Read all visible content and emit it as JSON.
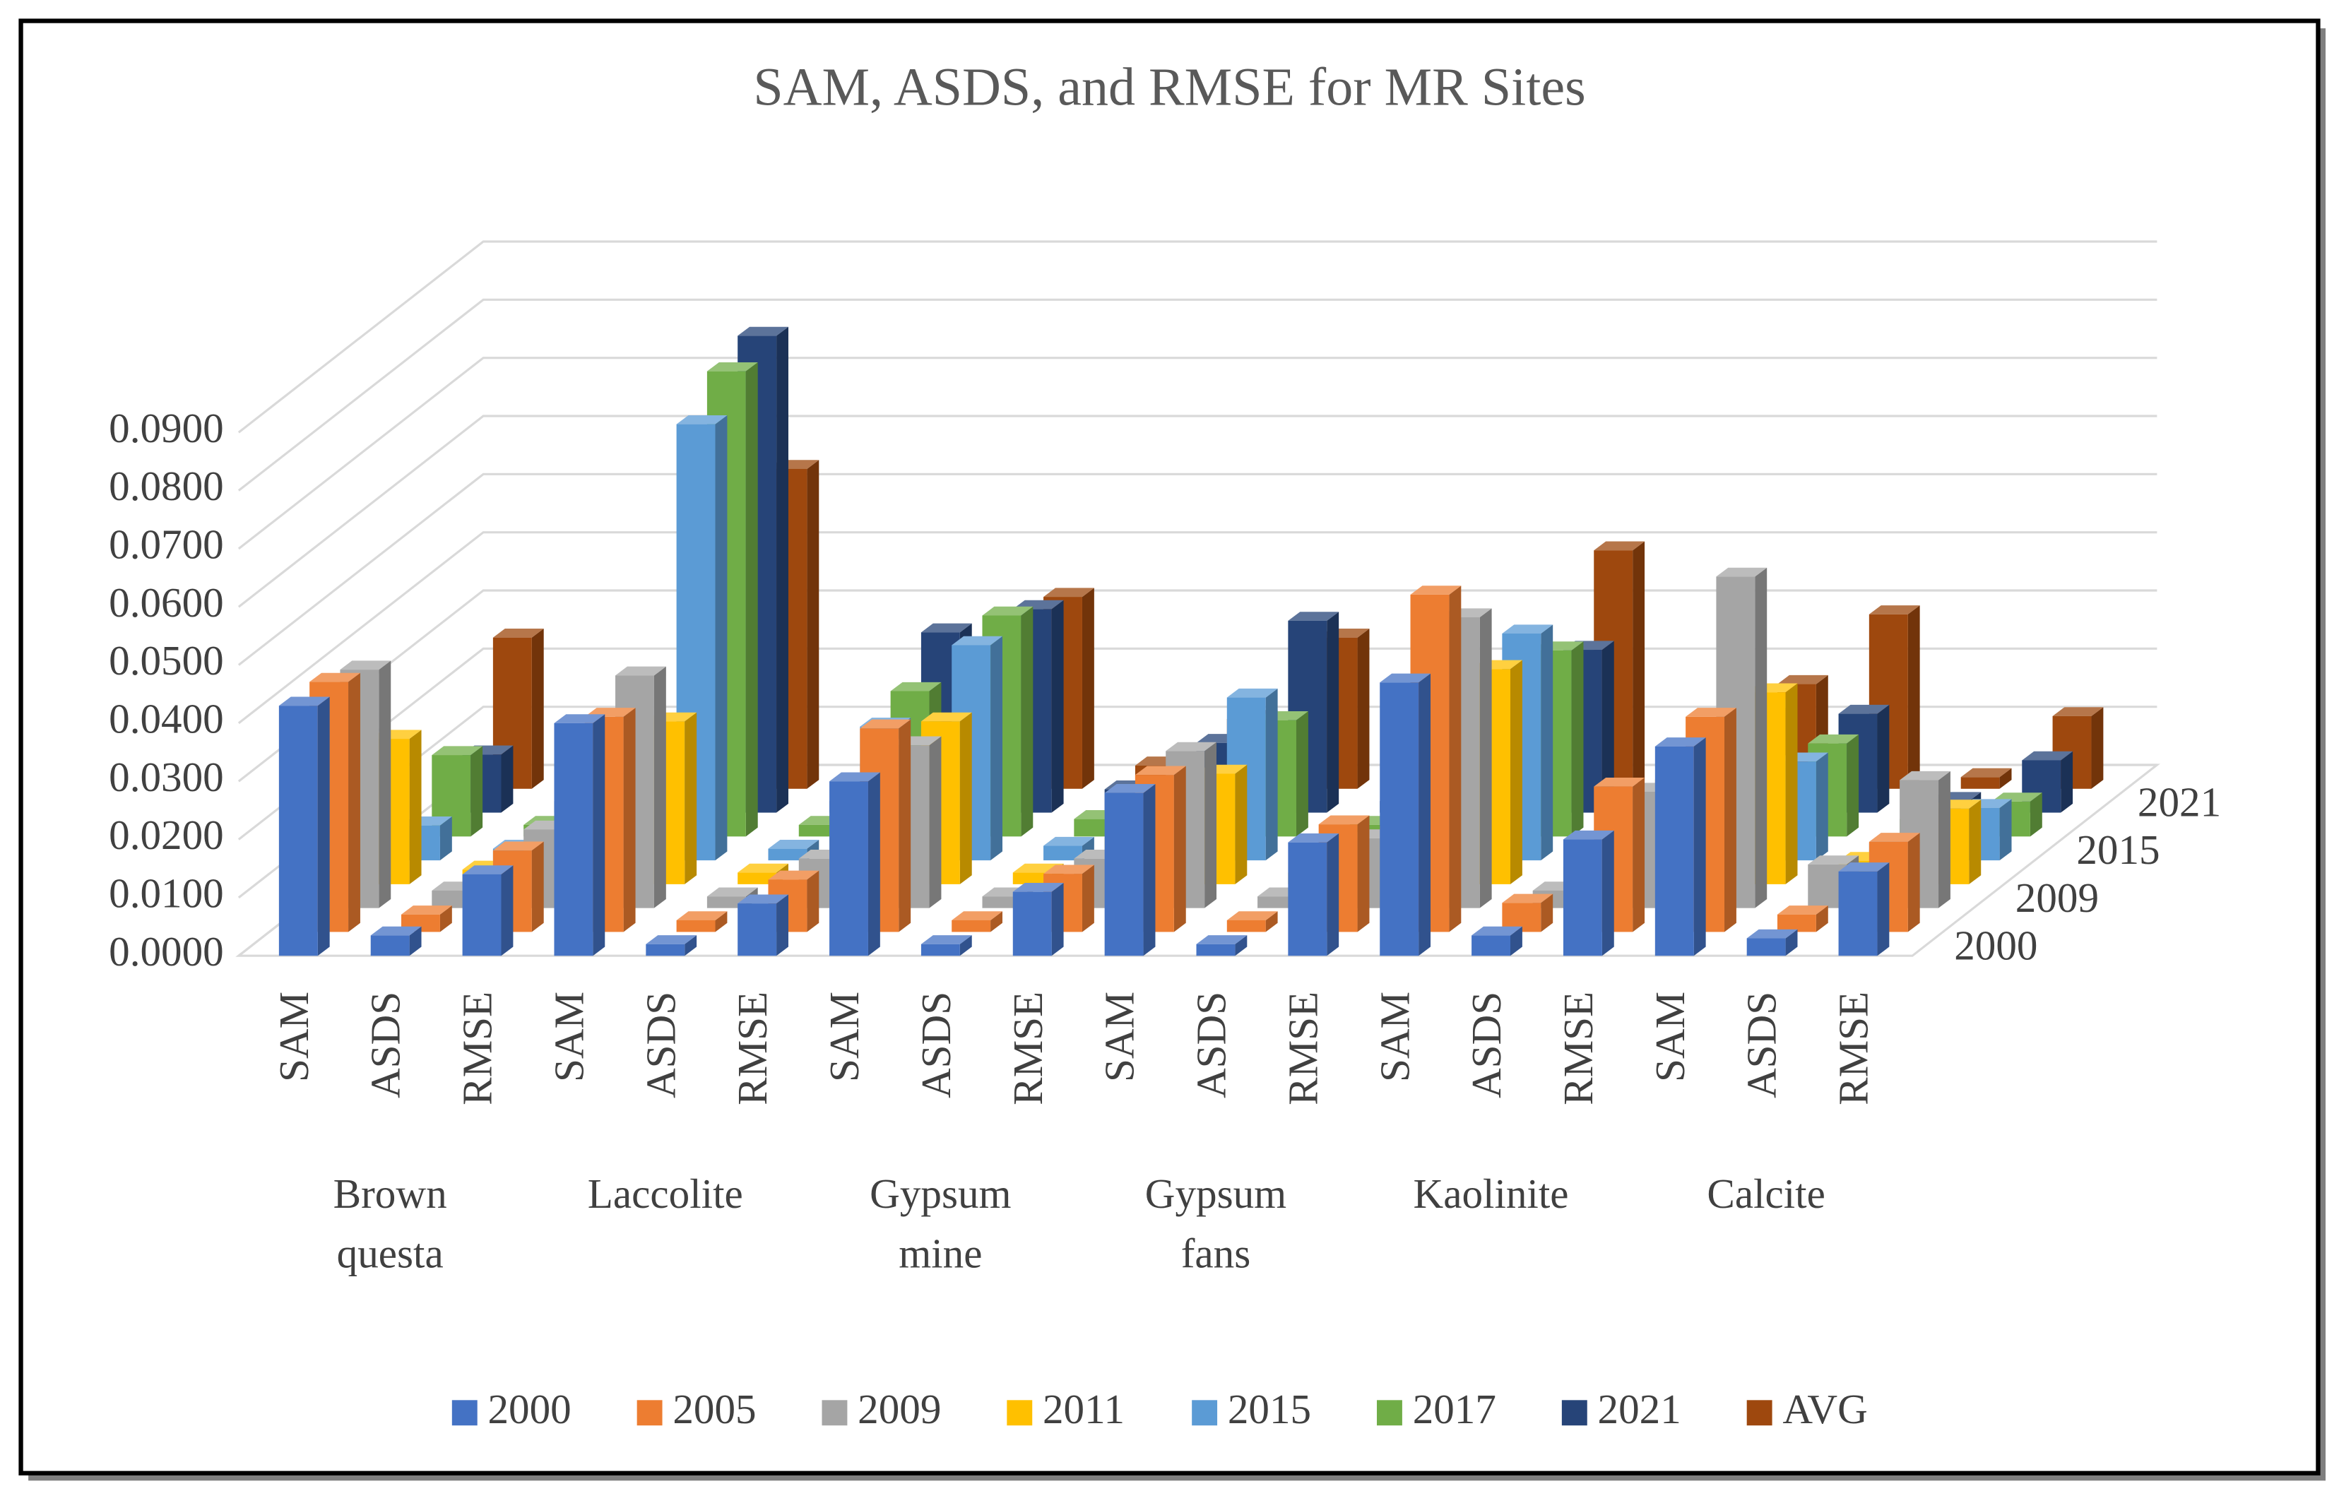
{
  "chart_data": {
    "type": "bar3d",
    "title": "SAM, ASDS,  and RMSE for MR Sites",
    "categories": [
      "SAM",
      "ASDS",
      "RMSE",
      "SAM",
      "ASDS",
      "RMSE",
      "SAM",
      "ASDS",
      "RMSE",
      "SAM",
      "ASDS",
      "RMSE",
      "SAM",
      "ASDS",
      "RMSE",
      "SAM",
      "ASDS",
      "RMSE"
    ],
    "groups": [
      "Brown questa",
      "Laccolite",
      "Gypsum mine",
      "Gypsum fans",
      "Kaolinite",
      "Calcite"
    ],
    "ylim": [
      0,
      0.09
    ],
    "yticks": [
      {
        "value": 0,
        "label": "0.0000"
      },
      {
        "value": 0.01,
        "label": "0.0100"
      },
      {
        "value": 0.02,
        "label": "0.0200"
      },
      {
        "value": 0.03,
        "label": "0.0300"
      },
      {
        "value": 0.04,
        "label": "0.0400"
      },
      {
        "value": 0.05,
        "label": "0.0500"
      },
      {
        "value": 0.06,
        "label": "0.0600"
      },
      {
        "value": 0.07,
        "label": "0.0700"
      },
      {
        "value": 0.08,
        "label": "0.0800"
      },
      {
        "value": 0.09,
        "label": "0.0900"
      }
    ],
    "grid": true,
    "legend": "bottom",
    "series": [
      {
        "name": "2000",
        "color": "#4472c4",
        "values": [
          0.043,
          0.0035,
          0.014,
          0.04,
          0.002,
          0.009,
          0.03,
          0.002,
          0.011,
          0.028,
          0.002,
          0.0195,
          0.047,
          0.0035,
          0.02,
          0.036,
          0.003,
          0.0145
        ]
      },
      {
        "name": "2005",
        "color": "#ed7d31",
        "values": [
          0.043,
          0.003,
          0.014,
          0.037,
          0.002,
          0.009,
          0.035,
          0.002,
          0.01,
          0.027,
          0.002,
          0.0185,
          0.058,
          0.005,
          0.025,
          0.037,
          0.003,
          0.0155
        ]
      },
      {
        "name": "2009",
        "color": "#a5a5a5",
        "values": [
          0.041,
          0.003,
          0.0135,
          0.04,
          0.002,
          0.0085,
          0.028,
          0.002,
          0.0085,
          0.027,
          0.002,
          0.012,
          0.05,
          0.003,
          0.02,
          0.057,
          0.0075,
          0.022
        ]
      },
      {
        "name": "2011",
        "color": "#ffc000",
        "values": [
          0.025,
          0.0025,
          0.012,
          0.028,
          0.002,
          0.008,
          0.028,
          0.002,
          0.008,
          0.019,
          0.002,
          0.01,
          0.037,
          0.003,
          0.018,
          0.033,
          0.004,
          0.013
        ]
      },
      {
        "name": "2015",
        "color": "#5b9bd5",
        "values": [
          0.006,
          0.002,
          0.012,
          0.075,
          0.002,
          0.023,
          0.037,
          0.0025,
          0.01,
          0.028,
          0.002,
          0.01,
          0.039,
          0.003,
          0.018,
          0.017,
          0.003,
          0.009
        ]
      },
      {
        "name": "2017",
        "color": "#70ad47",
        "values": [
          0.014,
          0.002,
          0.012,
          0.08,
          0.002,
          0.025,
          0.038,
          0.003,
          0.01,
          0.02,
          0.002,
          0.01,
          0.032,
          0.003,
          0.018,
          0.016,
          0.003,
          0.006
        ]
      },
      {
        "name": "2021",
        "color": "#264478",
        "values": [
          0.01,
          0.002,
          0.012,
          0.082,
          0.002,
          0.031,
          0.035,
          0.004,
          0.012,
          0.033,
          0.002,
          0.01,
          0.028,
          0.003,
          0.018,
          0.017,
          0.002,
          0.009
        ]
      },
      {
        "name": "AVG",
        "color": "#9e480e",
        "values": [
          0.026,
          0.003,
          0.013,
          0.055,
          0.002,
          0.0125,
          0.033,
          0.004,
          0.012,
          0.026,
          0.002,
          0.01,
          0.041,
          0.003,
          0.018,
          0.03,
          0.002,
          0.0125
        ]
      }
    ]
  }
}
